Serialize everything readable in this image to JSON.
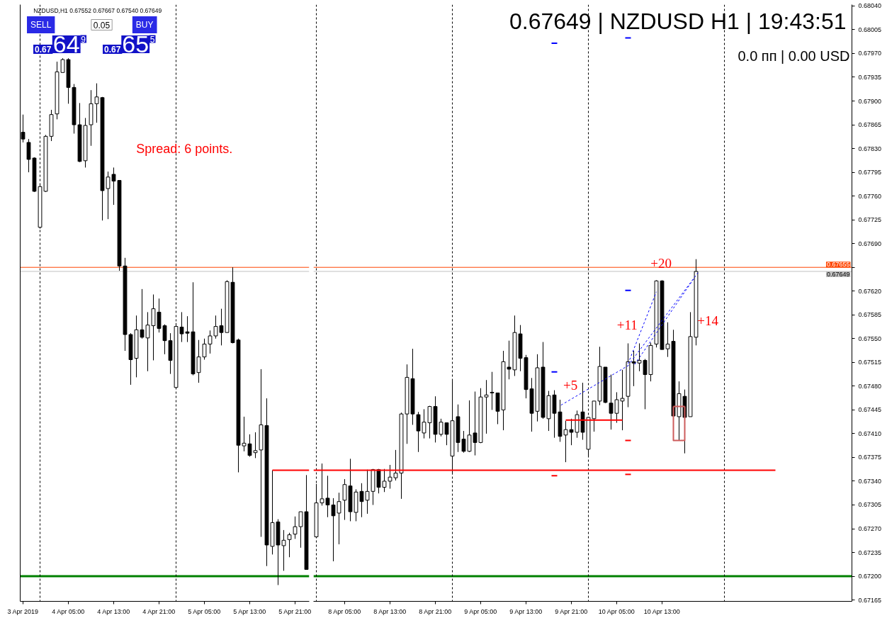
{
  "chart_data": [
    {
      "type": "candlestick",
      "title": "NZDUSD,H1 0.67552 0.67667 0.67540 0.67649",
      "x": [
        "2019-04-03T21:00",
        "2019-04-03T22:00",
        "2019-04-03T23:00",
        "2019-04-04T00:00",
        "2019-04-04T01:00",
        "2019-04-04T02:00",
        "2019-04-04T03:00",
        "2019-04-04T04:00",
        "2019-04-04T05:00",
        "2019-04-04T06:00",
        "2019-04-04T07:00",
        "2019-04-04T08:00",
        "2019-04-04T09:00",
        "2019-04-04T10:00",
        "2019-04-04T11:00",
        "2019-04-04T12:00",
        "2019-04-04T13:00",
        "2019-04-04T14:00",
        "2019-04-04T15:00",
        "2019-04-04T16:00",
        "2019-04-04T17:00",
        "2019-04-04T18:00",
        "2019-04-04T19:00",
        "2019-04-04T20:00",
        "2019-04-04T21:00",
        "2019-04-04T22:00",
        "2019-04-04T23:00",
        "2019-04-05T00:00",
        "2019-04-05T01:00",
        "2019-04-05T02:00",
        "2019-04-05T03:00",
        "2019-04-05T04:00",
        "2019-04-05T05:00",
        "2019-04-05T06:00",
        "2019-04-05T07:00",
        "2019-04-05T08:00",
        "2019-04-05T09:00",
        "2019-04-05T10:00",
        "2019-04-05T11:00",
        "2019-04-05T12:00",
        "2019-04-05T13:00",
        "2019-04-05T14:00",
        "2019-04-05T15:00",
        "2019-04-05T16:00",
        "2019-04-05T17:00",
        "2019-04-05T18:00",
        "2019-04-05T19:00",
        "2019-04-05T20:00",
        "2019-04-05T21:00",
        "2019-04-05T22:00",
        "2019-04-05T23:00"
      ],
      "ohlc": [
        [
          0.67854,
          0.6788,
          0.67839,
          0.67844
        ],
        [
          0.67839,
          0.67844,
          0.67795,
          0.67814
        ],
        [
          0.67816,
          0.67817,
          0.67766,
          0.67767
        ],
        [
          0.67714,
          0.67776,
          0.67712,
          0.67774
        ],
        [
          0.67767,
          0.6785,
          0.67766,
          0.67848
        ],
        [
          0.67848,
          0.67887,
          0.67841,
          0.6788
        ],
        [
          0.67881,
          0.67958,
          0.67873,
          0.67943
        ],
        [
          0.67942,
          0.67963,
          0.67942,
          0.67961
        ],
        [
          0.67961,
          0.67963,
          0.67896,
          0.6792
        ],
        [
          0.6792,
          0.67925,
          0.67852,
          0.67865
        ],
        [
          0.67865,
          0.67897,
          0.6781,
          0.67811
        ],
        [
          0.67812,
          0.67875,
          0.67802,
          0.67864
        ],
        [
          0.67865,
          0.67916,
          0.67834,
          0.67896
        ],
        [
          0.67896,
          0.67926,
          0.67868,
          0.67906
        ],
        [
          0.67905,
          0.67906,
          0.67724,
          0.67768
        ],
        [
          0.67771,
          0.67796,
          0.67726,
          0.67788
        ],
        [
          0.67792,
          0.67802,
          0.67747,
          0.67782
        ],
        [
          0.67783,
          0.67783,
          0.6765,
          0.67657
        ],
        [
          0.67657,
          0.67669,
          0.67532,
          0.67556
        ],
        [
          0.67556,
          0.67558,
          0.67482,
          0.67519
        ],
        [
          0.67521,
          0.67584,
          0.67493,
          0.67563
        ],
        [
          0.67563,
          0.67623,
          0.6755,
          0.67552
        ],
        [
          0.67551,
          0.67589,
          0.67502,
          0.6757
        ],
        [
          0.67569,
          0.67615,
          0.67518,
          0.67594
        ],
        [
          0.67589,
          0.67609,
          0.67559,
          0.67565
        ],
        [
          0.67569,
          0.67571,
          0.67527,
          0.67547
        ],
        [
          0.67547,
          0.67558,
          0.67498,
          0.67518
        ],
        [
          0.67478,
          0.67573,
          0.67476,
          0.67568
        ],
        [
          0.67567,
          0.67589,
          0.67545,
          0.67557
        ],
        [
          0.6756,
          0.67583,
          0.67545,
          0.67558
        ],
        [
          0.6756,
          0.67633,
          0.67496,
          0.67498
        ],
        [
          0.675,
          0.67548,
          0.67485,
          0.67523
        ],
        [
          0.67523,
          0.6755,
          0.67519,
          0.67542
        ],
        [
          0.67542,
          0.67562,
          0.67528,
          0.67554
        ],
        [
          0.67554,
          0.67584,
          0.6755,
          0.67568
        ],
        [
          0.67569,
          0.67594,
          0.6754,
          0.67559
        ],
        [
          0.67559,
          0.67636,
          0.67559,
          0.67634
        ],
        [
          0.67633,
          0.67655,
          0.67543,
          0.67544
        ],
        [
          0.67548,
          0.6755,
          0.67353,
          0.67393
        ],
        [
          0.67392,
          0.67435,
          0.67384,
          0.67396
        ],
        [
          0.67395,
          0.67409,
          0.67376,
          0.67378
        ],
        [
          0.67382,
          0.67412,
          0.67374,
          0.67385
        ],
        [
          0.67386,
          0.67505,
          0.67258,
          0.67423
        ],
        [
          0.67422,
          0.67462,
          0.67215,
          0.67246
        ],
        [
          0.67244,
          0.67356,
          0.67232,
          0.67279
        ],
        [
          0.6728,
          0.67284,
          0.67187,
          0.67246
        ],
        [
          0.67245,
          0.67268,
          0.67208,
          0.67253
        ],
        [
          0.67254,
          0.67264,
          0.67228,
          0.67261
        ],
        [
          0.67262,
          0.67288,
          0.67255,
          0.67273
        ],
        [
          0.67273,
          0.67295,
          0.67242,
          0.67295
        ],
        [
          0.67295,
          0.67349,
          0.6721,
          0.6721
        ]
      ],
      "color": "#000000",
      "colors": [
        "#000000",
        "#000000",
        "#000000",
        "#ffffff",
        "#ffffff",
        "#ffffff",
        "#ffffff",
        "#ffffff",
        "#000000",
        "#000000",
        "#000000",
        "#ffffff",
        "#ffffff",
        "#ffffff",
        "#000000",
        "#ffffff",
        "#000000",
        "#000000",
        "#000000",
        "#000000",
        "#ffffff",
        "#000000",
        "#ffffff",
        "#ffffff",
        "#000000",
        "#000000",
        "#000000",
        "#ffffff",
        "#000000",
        "#000000",
        "#000000",
        "#ffffff",
        "#ffffff",
        "#ffffff",
        "#ffffff",
        "#000000",
        "#ffffff",
        "#000000",
        "#000000",
        "#ffffff",
        "#000000",
        "#ffffff",
        "#ffffff",
        "#000000",
        "#ffffff",
        "#000000",
        "#ffffff",
        "#ffffff",
        "#ffffff",
        "#ffffff",
        "#000000"
      ],
      "series": [
        {
          "type": "line",
          "color": "#ff0000",
          "line_style": "solid",
          "x": [
            "2019-04-05T17:00",
            "2019-04-05T23:30"
          ],
          "values": [
            0.67356,
            0.67356
          ]
        }
      ],
      "ref_lines": [
        {
          "axis": "y",
          "value": 0.672,
          "color": "#008000"
        },
        {
          "axis": "y",
          "value": 0.67655,
          "color": "#ff4500"
        },
        {
          "axis": "y",
          "value": 0.67649,
          "color": "#c0c0c0"
        },
        {
          "axis": "x",
          "value": "2019-04-04T00:00",
          "color": "#000000",
          "line_style": "dashed"
        },
        {
          "axis": "x",
          "value": "2019-04-05T00:00",
          "color": "#000000",
          "line_style": "dashed"
        }
      ],
      "annotations": [
        "Spread: 6 points.",
        "SELL",
        "0.05",
        "BUY",
        "0.67",
        "64",
        "9",
        "0.67",
        "65",
        "5"
      ],
      "xlim": [
        "2019-04-03T20:30",
        "2019-04-05T23:30"
      ],
      "ylim": [
        0.67163,
        0.68042
      ],
      "xticks": [
        {
          "value": "2019-04-03T21:00",
          "label": "3 Apr 2019"
        },
        {
          "value": "2019-04-04T05:00",
          "label": "4 Apr 05:00"
        },
        {
          "value": "2019-04-04T13:00",
          "label": "4 Apr 13:00"
        },
        {
          "value": "2019-04-04T21:00",
          "label": "4 Apr 21:00"
        },
        {
          "value": "2019-04-05T05:00",
          "label": "5 Apr 05:00"
        },
        {
          "value": "2019-04-05T13:00",
          "label": "5 Apr 13:00"
        },
        {
          "value": "2019-04-05T21:00",
          "label": "5 Apr 21:00"
        }
      ],
      "tick_labels": "x",
      "grid": false
    },
    {
      "type": "candlestick",
      "x": [
        "2019-04-08T00:00",
        "2019-04-08T01:00",
        "2019-04-08T02:00",
        "2019-04-08T03:00",
        "2019-04-08T04:00",
        "2019-04-08T05:00",
        "2019-04-08T06:00",
        "2019-04-08T07:00",
        "2019-04-08T08:00",
        "2019-04-08T09:00",
        "2019-04-08T10:00",
        "2019-04-08T11:00",
        "2019-04-08T12:00",
        "2019-04-08T13:00",
        "2019-04-08T14:00",
        "2019-04-08T15:00",
        "2019-04-08T16:00",
        "2019-04-08T17:00",
        "2019-04-08T18:00",
        "2019-04-08T19:00",
        "2019-04-08T20:00",
        "2019-04-08T21:00",
        "2019-04-08T22:00",
        "2019-04-08T23:00",
        "2019-04-09T00:00",
        "2019-04-09T01:00",
        "2019-04-09T02:00",
        "2019-04-09T03:00",
        "2019-04-09T04:00",
        "2019-04-09T05:00",
        "2019-04-09T06:00",
        "2019-04-09T07:00",
        "2019-04-09T08:00",
        "2019-04-09T09:00",
        "2019-04-09T10:00",
        "2019-04-09T11:00",
        "2019-04-09T12:00",
        "2019-04-09T13:00",
        "2019-04-09T14:00",
        "2019-04-09T15:00",
        "2019-04-09T16:00",
        "2019-04-09T17:00",
        "2019-04-09T18:00",
        "2019-04-09T19:00",
        "2019-04-09T20:00",
        "2019-04-09T21:00",
        "2019-04-09T22:00",
        "2019-04-09T23:00",
        "2019-04-10T00:00",
        "2019-04-10T01:00",
        "2019-04-10T02:00",
        "2019-04-10T03:00",
        "2019-04-10T04:00",
        "2019-04-10T05:00",
        "2019-04-10T06:00",
        "2019-04-10T07:00",
        "2019-04-10T08:00",
        "2019-04-10T09:00",
        "2019-04-10T10:00",
        "2019-04-10T11:00",
        "2019-04-10T12:00",
        "2019-04-10T13:00",
        "2019-04-10T14:00",
        "2019-04-10T15:00",
        "2019-04-10T16:00",
        "2019-04-10T17:00",
        "2019-04-10T18:00",
        "2019-04-10T19:00"
      ],
      "ohlc": [
        [
          0.67258,
          0.67336,
          0.67257,
          0.67308
        ],
        [
          0.67308,
          0.67366,
          0.67304,
          0.67314
        ],
        [
          0.67315,
          0.67348,
          0.67287,
          0.67305
        ],
        [
          0.67305,
          0.67315,
          0.67222,
          0.67289
        ],
        [
          0.67293,
          0.67323,
          0.67247,
          0.6731
        ],
        [
          0.67312,
          0.67343,
          0.67283,
          0.67335
        ],
        [
          0.67333,
          0.67373,
          0.67281,
          0.67295
        ],
        [
          0.67294,
          0.67328,
          0.67281,
          0.67324
        ],
        [
          0.67325,
          0.67337,
          0.67287,
          0.6731
        ],
        [
          0.67312,
          0.67357,
          0.67292,
          0.67325
        ],
        [
          0.67325,
          0.67358,
          0.67305,
          0.67357
        ],
        [
          0.67357,
          0.67358,
          0.67322,
          0.67331
        ],
        [
          0.67331,
          0.67358,
          0.67324,
          0.6734
        ],
        [
          0.6734,
          0.67364,
          0.67329,
          0.67346
        ],
        [
          0.67345,
          0.67386,
          0.67341,
          0.67352
        ],
        [
          0.67352,
          0.67441,
          0.67314,
          0.67439
        ],
        [
          0.67439,
          0.67512,
          0.67395,
          0.67493
        ],
        [
          0.67491,
          0.67535,
          0.67423,
          0.67439
        ],
        [
          0.67438,
          0.67442,
          0.67383,
          0.67414
        ],
        [
          0.67411,
          0.67446,
          0.67403,
          0.67427
        ],
        [
          0.67426,
          0.67451,
          0.67403,
          0.6745
        ],
        [
          0.6745,
          0.67465,
          0.67397,
          0.67409
        ],
        [
          0.67409,
          0.67432,
          0.67406,
          0.67427
        ],
        [
          0.67426,
          0.67426,
          0.67393,
          0.67409
        ],
        [
          0.67377,
          0.67488,
          0.6735,
          0.67429
        ],
        [
          0.67435,
          0.67453,
          0.67383,
          0.67397
        ],
        [
          0.67402,
          0.67414,
          0.67382,
          0.67384
        ],
        [
          0.67384,
          0.67459,
          0.67383,
          0.67408
        ],
        [
          0.67411,
          0.67472,
          0.67378,
          0.67397
        ],
        [
          0.67397,
          0.67477,
          0.67396,
          0.67464
        ],
        [
          0.67464,
          0.67489,
          0.6741,
          0.67467
        ],
        [
          0.67471,
          0.67501,
          0.67445,
          0.6747
        ],
        [
          0.6747,
          0.6747,
          0.67424,
          0.67443
        ],
        [
          0.67445,
          0.67532,
          0.67415,
          0.67516
        ],
        [
          0.67508,
          0.67547,
          0.6749,
          0.67505
        ],
        [
          0.67504,
          0.67584,
          0.67495,
          0.67559
        ],
        [
          0.67557,
          0.6757,
          0.67502,
          0.67521
        ],
        [
          0.67522,
          0.67526,
          0.67462,
          0.67475
        ],
        [
          0.67476,
          0.67492,
          0.67413,
          0.6744
        ],
        [
          0.67443,
          0.67527,
          0.67428,
          0.67507
        ],
        [
          0.67508,
          0.67545,
          0.67432,
          0.67434
        ],
        [
          0.67432,
          0.67473,
          0.67414,
          0.67466
        ],
        [
          0.67467,
          0.67474,
          0.67404,
          0.6744
        ],
        [
          0.67442,
          0.6746,
          0.67398,
          0.67406
        ],
        [
          0.67408,
          0.67429,
          0.67368,
          0.67416
        ],
        [
          0.67416,
          0.67432,
          0.67393,
          0.67412
        ],
        [
          0.67412,
          0.67444,
          0.67404,
          0.67438
        ],
        [
          0.67442,
          0.67485,
          0.67401,
          0.67412
        ],
        [
          0.67387,
          0.67434,
          0.67376,
          0.67434
        ],
        [
          0.67432,
          0.67458,
          0.67413,
          0.67458
        ],
        [
          0.67458,
          0.67538,
          0.67452,
          0.67509
        ],
        [
          0.67508,
          0.67508,
          0.67455,
          0.67456
        ],
        [
          0.67455,
          0.67497,
          0.67416,
          0.6744
        ],
        [
          0.6744,
          0.67471,
          0.67426,
          0.6746
        ],
        [
          0.67458,
          0.67504,
          0.67415,
          0.67462
        ],
        [
          0.67465,
          0.67543,
          0.67449,
          0.67516
        ],
        [
          0.67516,
          0.67532,
          0.6748,
          0.67514
        ],
        [
          0.67514,
          0.67543,
          0.67502,
          0.67518
        ],
        [
          0.67518,
          0.6752,
          0.67446,
          0.67497
        ],
        [
          0.67497,
          0.67544,
          0.67487,
          0.6754
        ],
        [
          0.67542,
          0.67636,
          0.67537,
          0.67635
        ],
        [
          0.67635,
          0.67636,
          0.67534,
          0.67534
        ],
        [
          0.67535,
          0.67574,
          0.67523,
          0.67542
        ],
        [
          0.67546,
          0.67563,
          0.67435,
          0.67436
        ],
        [
          0.67435,
          0.67487,
          0.674,
          0.67469
        ],
        [
          0.67465,
          0.67475,
          0.67381,
          0.67434
        ],
        [
          0.67435,
          0.67589,
          0.67435,
          0.67553
        ],
        [
          0.67552,
          0.67667,
          0.6754,
          0.67649
        ]
      ],
      "color": "#000000",
      "colors": [
        "#ffffff",
        "#ffffff",
        "#000000",
        "#000000",
        "#ffffff",
        "#ffffff",
        "#000000",
        "#ffffff",
        "#000000",
        "#ffffff",
        "#ffffff",
        "#000000",
        "#ffffff",
        "#ffffff",
        "#ffffff",
        "#ffffff",
        "#ffffff",
        "#000000",
        "#000000",
        "#ffffff",
        "#ffffff",
        "#000000",
        "#ffffff",
        "#000000",
        "#ffffff",
        "#000000",
        "#000000",
        "#ffffff",
        "#000000",
        "#ffffff",
        "#ffffff",
        "#000000",
        "#000000",
        "#ffffff",
        "#000000",
        "#ffffff",
        "#000000",
        "#000000",
        "#000000",
        "#ffffff",
        "#000000",
        "#ffffff",
        "#000000",
        "#000000",
        "#ffffff",
        "#000000",
        "#ffffff",
        "#000000",
        "#ffffff",
        "#ffffff",
        "#ffffff",
        "#000000",
        "#000000",
        "#ffffff",
        "#ffffff",
        "#ffffff",
        "#000000",
        "#ffffff",
        "#000000",
        "#ffffff",
        "#ffffff",
        "#000000",
        "#ffffff",
        "#000000",
        "#ffffff",
        "#000000",
        "#ffffff",
        "#ffffff"
      ],
      "series": [
        {
          "type": "line",
          "color": "#ff0000",
          "line_style": "solid",
          "x": [
            "2019-04-07T23:30",
            "2019-04-11T09:00"
          ],
          "values": [
            0.67356,
            0.67356
          ]
        },
        {
          "type": "line",
          "color": "#ff0000",
          "line_style": "solid",
          "x": [
            "2019-04-09T20:00",
            "2019-04-10T06:00"
          ],
          "values": [
            0.6743,
            0.6743
          ]
        },
        {
          "type": "line",
          "color": "#cd5c5c",
          "line_style": "solid",
          "x": [
            "2019-04-10T15:00",
            "2019-04-10T15:00",
            "2019-04-10T17:00",
            "2019-04-10T17:00",
            null,
            "2019-04-10T15:00",
            "2019-04-10T17:00"
          ],
          "values": [
            0.6745,
            0.674,
            0.674,
            0.6745,
            null,
            0.6745,
            0.6745
          ]
        },
        {
          "type": "line",
          "color": "#0000ff",
          "line_style": "dashed",
          "x": [
            "2019-04-09T19:10",
            "2019-04-10T07:10",
            null,
            "2019-04-10T07:00",
            "2019-04-10T12:00",
            null,
            "2019-04-10T07:25",
            "2019-04-10T19:20",
            null,
            "2019-04-10T08:10",
            "2019-04-10T18:50"
          ],
          "values": [
            0.67452,
            0.67511,
            null,
            0.67513,
            0.67619,
            null,
            0.67515,
            0.67647,
            null,
            0.67512,
            0.67641
          ]
        },
        {
          "type": "line",
          "color": "#0000ff",
          "line_style": "solid",
          "x": [
            "2019-04-09T17:30",
            "2019-04-09T18:30",
            null,
            "2019-04-10T06:30",
            "2019-04-10T07:30"
          ],
          "values": [
            0.67985,
            0.67985,
            null,
            0.67993,
            0.67993
          ]
        },
        {
          "type": "line",
          "color": "#0000ff",
          "line_style": "solid",
          "x": [
            "2019-04-09T17:30",
            "2019-04-09T18:30",
            null,
            "2019-04-10T06:30",
            "2019-04-10T07:30"
          ],
          "values": [
            0.67501,
            0.67501,
            null,
            0.67621,
            0.67621
          ]
        },
        {
          "type": "line",
          "color": "#ff0000",
          "line_style": "solid",
          "x": [
            "2019-04-09T17:30",
            "2019-04-09T18:30",
            null,
            "2019-04-10T06:30",
            "2019-04-10T07:30"
          ],
          "values": [
            0.67348,
            0.67348,
            null,
            0.674,
            0.674
          ]
        },
        {
          "type": "line",
          "color": "#ff0000",
          "line_style": "solid",
          "x": [
            "2019-04-10T06:30",
            "2019-04-10T07:30"
          ],
          "values": [
            0.6735,
            0.6735
          ]
        }
      ],
      "ref_lines": [
        {
          "axis": "y",
          "value": 0.672,
          "color": "#008000"
        },
        {
          "axis": "y",
          "value": 0.67655,
          "label": "0.67655",
          "color": "#ff4500"
        },
        {
          "axis": "y",
          "value": 0.67649,
          "label": "0.67649",
          "color": "#c0c0c0"
        },
        {
          "axis": "x",
          "value": "2019-04-08T00:00",
          "color": "#000000",
          "line_style": "dashed"
        },
        {
          "axis": "x",
          "value": "2019-04-09T00:00",
          "color": "#000000",
          "line_style": "dashed"
        },
        {
          "axis": "x",
          "value": "2019-04-10T00:00",
          "color": "#000000",
          "line_style": "dashed"
        },
        {
          "axis": "x",
          "value": "2019-04-11T00:00",
          "color": "#000000",
          "line_style": "dashed"
        }
      ],
      "annotations": [
        "0.67649 | NZDUSD H1 | 19:43:51",
        "0.0 пп | 0.00 USD",
        "+5",
        "+11",
        "+20",
        "+14"
      ],
      "xlim": [
        "2019-04-07T23:30",
        "2019-04-11T22:30"
      ],
      "ylim": [
        0.67163,
        0.68042
      ],
      "xticks": [
        {
          "value": "2019-04-08T05:00",
          "label": "8 Apr 05:00"
        },
        {
          "value": "2019-04-08T13:00",
          "label": "8 Apr 13:00"
        },
        {
          "value": "2019-04-08T21:00",
          "label": "8 Apr 21:00"
        },
        {
          "value": "2019-04-09T05:00",
          "label": "9 Apr 05:00"
        },
        {
          "value": "2019-04-09T13:00",
          "label": "9 Apr 13:00"
        },
        {
          "value": "2019-04-09T21:00",
          "label": "9 Apr 21:00"
        },
        {
          "value": "2019-04-10T05:00",
          "label": "10 Apr 05:00"
        },
        {
          "value": "2019-04-10T13:00",
          "label": "10 Apr 13:00"
        }
      ],
      "yticks": [
        {
          "value": 0.6804,
          "label": "0.68040"
        },
        0.68005,
        {
          "value": 0.6797,
          "label": "0.67970"
        },
        0.67935,
        {
          "value": 0.679,
          "label": "0.67900"
        },
        0.67865,
        {
          "value": 0.6783,
          "label": "0.67830"
        },
        0.67795,
        {
          "value": 0.6776,
          "label": "0.67760"
        },
        0.67725,
        {
          "value": 0.6769,
          "label": "0.67690"
        },
        {
          "value": 0.67655,
          "label": null
        },
        {
          "value": 0.6762,
          "label": "0.67620"
        },
        0.67585,
        {
          "value": 0.6755,
          "label": "0.67550"
        },
        0.67515,
        {
          "value": 0.6748,
          "label": "0.67480"
        },
        0.67445,
        {
          "value": 0.6741,
          "label": "0.67410"
        },
        0.67375,
        {
          "value": 0.6734,
          "label": "0.67340"
        },
        0.67305,
        {
          "value": 0.6727,
          "label": "0.67270"
        },
        0.67235,
        {
          "value": 0.672,
          "label": "0.67200"
        },
        0.67165
      ],
      "grid": false
    }
  ]
}
